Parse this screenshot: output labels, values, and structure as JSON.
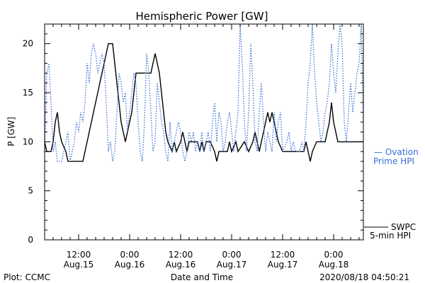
{
  "chart_data": {
    "type": "line",
    "title": "Hemispheric Power [GW]",
    "ylabel": "P [GW]",
    "xlabel": "Date and Time",
    "ylim": [
      0,
      22
    ],
    "yticks": [
      0,
      5,
      10,
      15,
      20
    ],
    "xlim_hours": [
      0,
      75
    ],
    "x_tick_labels": [
      {
        "time": "12:00",
        "date": "Aug.15"
      },
      {
        "time": "0:00",
        "date": "Aug.16"
      },
      {
        "time": "12:00",
        "date": "Aug.16"
      },
      {
        "time": "0:00",
        "date": "Aug.17"
      },
      {
        "time": "12:00",
        "date": "Aug.17"
      },
      {
        "time": "0:00",
        "date": "Aug.18"
      }
    ],
    "series": [
      {
        "name": "SWPC 5-min HPI",
        "color": "#000000",
        "style": "solid",
        "points": [
          [
            0,
            10
          ],
          [
            0.5,
            9
          ],
          [
            1.5,
            9
          ],
          [
            2,
            10
          ],
          [
            2.5,
            12
          ],
          [
            3,
            13
          ],
          [
            3.5,
            11
          ],
          [
            4,
            10
          ],
          [
            5,
            9
          ],
          [
            5.5,
            8
          ],
          [
            6,
            8
          ],
          [
            9,
            8
          ],
          [
            9.5,
            9
          ],
          [
            10,
            10
          ],
          [
            10.5,
            11
          ],
          [
            11,
            12
          ],
          [
            11.5,
            13
          ],
          [
            12,
            14
          ],
          [
            12.5,
            15
          ],
          [
            13,
            16
          ],
          [
            13.5,
            17
          ],
          [
            14,
            18
          ],
          [
            14.5,
            19
          ],
          [
            15,
            20
          ],
          [
            16,
            20
          ],
          [
            16.5,
            18
          ],
          [
            17,
            16
          ],
          [
            17.5,
            14
          ],
          [
            18,
            12
          ],
          [
            18.5,
            11
          ],
          [
            19,
            10
          ],
          [
            19.5,
            11
          ],
          [
            20,
            12
          ],
          [
            20.5,
            13
          ],
          [
            21,
            15
          ],
          [
            21.5,
            17
          ],
          [
            25,
            17
          ],
          [
            25.5,
            18
          ],
          [
            26,
            19
          ],
          [
            26.5,
            18
          ],
          [
            27,
            17
          ],
          [
            27.5,
            15
          ],
          [
            28,
            13
          ],
          [
            28.5,
            11
          ],
          [
            29,
            10
          ],
          [
            30,
            9
          ],
          [
            30.5,
            10
          ],
          [
            31,
            9
          ],
          [
            32,
            10
          ],
          [
            32.5,
            11
          ],
          [
            33,
            10
          ],
          [
            33.5,
            9
          ],
          [
            34,
            10
          ],
          [
            36,
            10
          ],
          [
            36.5,
            9
          ],
          [
            37,
            10
          ],
          [
            37.5,
            9
          ],
          [
            38,
            10
          ],
          [
            39,
            10
          ],
          [
            40,
            9
          ],
          [
            40.5,
            8
          ],
          [
            41,
            9
          ],
          [
            43,
            9
          ],
          [
            43.5,
            10
          ],
          [
            44,
            9
          ],
          [
            45,
            10
          ],
          [
            45.5,
            9
          ],
          [
            47,
            10
          ],
          [
            48,
            9
          ],
          [
            49,
            10
          ],
          [
            49.5,
            11
          ],
          [
            50,
            10
          ],
          [
            50.5,
            9
          ],
          [
            51,
            10
          ],
          [
            51.5,
            11
          ],
          [
            52,
            12
          ],
          [
            52.5,
            13
          ],
          [
            53,
            12
          ],
          [
            53.5,
            13
          ],
          [
            54,
            12
          ],
          [
            54.5,
            11
          ],
          [
            55,
            10
          ],
          [
            56,
            9
          ],
          [
            61,
            9
          ],
          [
            61.5,
            10
          ],
          [
            62,
            9
          ],
          [
            62.5,
            8
          ],
          [
            63,
            9
          ],
          [
            64,
            10
          ],
          [
            66,
            10
          ],
          [
            66.5,
            11
          ],
          [
            67,
            12
          ],
          [
            67.5,
            14
          ],
          [
            68,
            12
          ],
          [
            68.5,
            11
          ],
          [
            69,
            10
          ],
          [
            70,
            10
          ],
          [
            75,
            10
          ]
        ]
      },
      {
        "name": "Ovation Prime HPI",
        "color": "#3a6fd8",
        "style": "dotted",
        "points": [
          [
            0,
            9
          ],
          [
            0.5,
            17
          ],
          [
            1,
            18
          ],
          [
            1.5,
            14
          ],
          [
            2,
            9
          ],
          [
            2.5,
            10
          ],
          [
            3,
            8
          ],
          [
            4,
            8
          ],
          [
            4.5,
            9
          ],
          [
            5,
            10
          ],
          [
            5.5,
            11
          ],
          [
            6,
            8
          ],
          [
            7,
            10
          ],
          [
            7.5,
            12
          ],
          [
            8,
            11
          ],
          [
            8.5,
            13
          ],
          [
            9,
            12
          ],
          [
            9.5,
            14
          ],
          [
            10,
            18
          ],
          [
            10.5,
            16
          ],
          [
            11,
            19
          ],
          [
            11.5,
            20
          ],
          [
            12,
            19
          ],
          [
            12.5,
            17
          ],
          [
            13,
            18
          ],
          [
            13.5,
            19
          ],
          [
            14,
            18
          ],
          [
            14.5,
            14
          ],
          [
            15,
            9
          ],
          [
            15.5,
            10
          ],
          [
            16,
            8
          ],
          [
            16.5,
            9
          ],
          [
            17,
            13
          ],
          [
            17.5,
            17
          ],
          [
            18,
            16
          ],
          [
            18.5,
            14
          ],
          [
            19,
            15
          ],
          [
            19.5,
            11
          ],
          [
            20,
            13
          ],
          [
            20.5,
            15
          ],
          [
            21,
            17
          ],
          [
            21.5,
            16
          ],
          [
            22,
            12
          ],
          [
            22.5,
            9
          ],
          [
            23,
            8
          ],
          [
            23.5,
            12
          ],
          [
            24,
            19
          ],
          [
            24.5,
            17
          ],
          [
            25,
            13
          ],
          [
            25.5,
            9
          ],
          [
            26,
            10
          ],
          [
            26.5,
            16
          ],
          [
            27,
            14
          ],
          [
            27.5,
            12
          ],
          [
            28,
            11
          ],
          [
            28.5,
            9
          ],
          [
            29,
            8
          ],
          [
            29.5,
            12
          ],
          [
            30,
            9
          ],
          [
            30.5,
            10
          ],
          [
            31,
            11
          ],
          [
            31.5,
            12
          ],
          [
            32,
            11
          ],
          [
            32.5,
            9
          ],
          [
            33,
            8
          ],
          [
            33.5,
            9
          ],
          [
            34,
            11
          ],
          [
            34.5,
            10
          ],
          [
            35,
            11
          ],
          [
            35.5,
            9
          ],
          [
            36,
            10
          ],
          [
            36.5,
            9
          ],
          [
            37,
            11
          ],
          [
            37.5,
            9
          ],
          [
            38,
            10
          ],
          [
            38.5,
            11
          ],
          [
            39,
            9
          ],
          [
            39.5,
            12
          ],
          [
            40,
            14
          ],
          [
            40.5,
            10
          ],
          [
            41,
            13
          ],
          [
            41.5,
            12
          ],
          [
            42,
            9
          ],
          [
            42.5,
            10
          ],
          [
            43,
            12
          ],
          [
            43.5,
            13
          ],
          [
            44,
            11
          ],
          [
            44.5,
            9
          ],
          [
            45,
            11
          ],
          [
            45.5,
            13
          ],
          [
            46,
            22
          ],
          [
            46.5,
            18
          ],
          [
            47,
            12
          ],
          [
            47.5,
            9
          ],
          [
            48,
            13
          ],
          [
            48.5,
            20
          ],
          [
            49,
            16
          ],
          [
            49.5,
            10
          ],
          [
            50,
            9
          ],
          [
            50.5,
            13
          ],
          [
            51,
            16
          ],
          [
            51.5,
            12
          ],
          [
            52,
            9
          ],
          [
            52.5,
            11
          ],
          [
            53,
            10
          ],
          [
            53.5,
            9
          ],
          [
            54,
            13
          ],
          [
            54.5,
            10
          ],
          [
            55,
            12
          ],
          [
            55.5,
            13
          ],
          [
            56,
            9
          ],
          [
            57,
            10
          ],
          [
            57.5,
            11
          ],
          [
            58,
            9
          ],
          [
            58.5,
            10
          ],
          [
            59,
            9
          ],
          [
            59.5,
            9
          ],
          [
            60,
            9
          ],
          [
            60.5,
            10
          ],
          [
            61,
            9
          ],
          [
            61.5,
            12
          ],
          [
            62,
            16
          ],
          [
            62.5,
            18
          ],
          [
            63,
            22
          ],
          [
            63.5,
            17
          ],
          [
            64,
            14
          ],
          [
            64.5,
            12
          ],
          [
            65,
            10
          ],
          [
            65.5,
            11
          ],
          [
            66,
            13
          ],
          [
            66.5,
            14
          ],
          [
            67,
            16
          ],
          [
            67.5,
            20
          ],
          [
            68,
            17
          ],
          [
            68.5,
            15
          ],
          [
            69,
            19
          ],
          [
            69.5,
            22
          ],
          [
            70,
            20
          ],
          [
            70.5,
            12
          ],
          [
            71,
            10
          ],
          [
            71.5,
            13
          ],
          [
            72,
            16
          ],
          [
            72.5,
            13
          ],
          [
            73,
            15
          ],
          [
            73.5,
            17
          ],
          [
            74,
            18
          ],
          [
            74.5,
            22
          ],
          [
            75,
            12
          ]
        ]
      }
    ],
    "legend": [
      {
        "lines": [
          "— Ovation",
          "Prime HPI"
        ],
        "color": "#3a6fd8"
      },
      {
        "lines": [
          "SWPC",
          "5-min HPI"
        ],
        "color": "#000000"
      }
    ]
  },
  "footer": {
    "left": "Plot: CCMC",
    "center": "Date and Time",
    "right": "2020/08/18 04:50:21"
  }
}
